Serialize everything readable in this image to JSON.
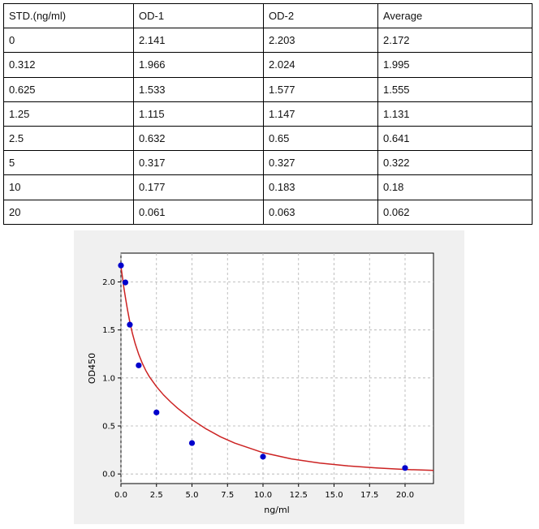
{
  "table": {
    "headers": [
      "STD.(ng/ml)",
      "OD-1",
      "OD-2",
      "Average"
    ],
    "rows": [
      [
        "0",
        "2.141",
        "2.203",
        "2.172"
      ],
      [
        "0.312",
        "1.966",
        "2.024",
        "1.995"
      ],
      [
        "0.625",
        "1.533",
        "1.577",
        "1.555"
      ],
      [
        "1.25",
        "1.115",
        "1.147",
        "1.131"
      ],
      [
        "2.5",
        "0.632",
        "0.65",
        "0.641"
      ],
      [
        "5",
        "0.317",
        "0.327",
        "0.322"
      ],
      [
        "10",
        "0.177",
        "0.183",
        "0.18"
      ],
      [
        "20",
        "0.061",
        "0.063",
        "0.062"
      ]
    ]
  },
  "chart_data": {
    "type": "scatter",
    "title": "",
    "xlabel": "ng/ml",
    "ylabel": "OD450",
    "xlim": [
      0,
      22
    ],
    "ylim": [
      -0.1,
      2.3
    ],
    "xticks": [
      "0.0",
      "2.5",
      "5.0",
      "7.5",
      "10.0",
      "12.5",
      "15.0",
      "17.5",
      "20.0"
    ],
    "yticks": [
      "0.0",
      "0.5",
      "1.0",
      "1.5",
      "2.0"
    ],
    "grid": true,
    "points": {
      "x": [
        0,
        0.312,
        0.625,
        1.25,
        2.5,
        5,
        10,
        20
      ],
      "y": [
        2.172,
        1.995,
        1.555,
        1.131,
        0.641,
        0.322,
        0.18,
        0.062
      ],
      "color": "#0000cc"
    },
    "fit_curve": {
      "x": [
        0,
        0.1,
        0.2,
        0.312,
        0.45,
        0.625,
        0.8,
        1,
        1.25,
        1.5,
        1.75,
        2,
        2.5,
        3,
        3.5,
        4,
        5,
        6,
        7,
        8,
        10,
        12,
        14,
        16,
        18,
        20,
        22
      ],
      "y": [
        2.16,
        2.053,
        1.946,
        1.839,
        1.718,
        1.583,
        1.468,
        1.359,
        1.245,
        1.153,
        1.077,
        1.013,
        0.909,
        0.823,
        0.749,
        0.683,
        0.566,
        0.469,
        0.388,
        0.322,
        0.222,
        0.157,
        0.113,
        0.083,
        0.062,
        0.047,
        0.037
      ],
      "color": "#cc2222"
    }
  }
}
